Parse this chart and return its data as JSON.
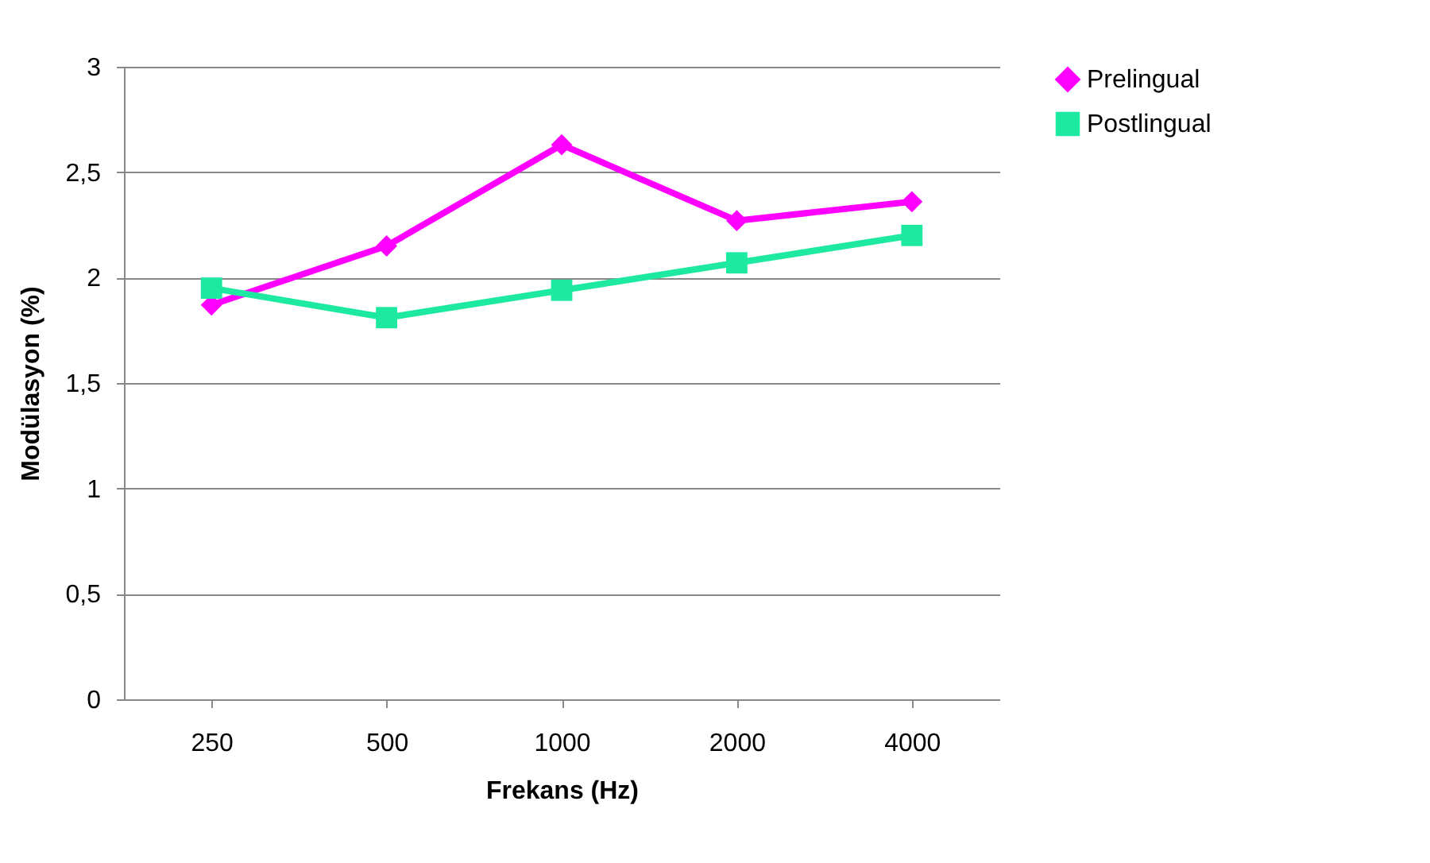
{
  "chart_data": {
    "type": "line",
    "xlabel": "Frekans (Hz)",
    "ylabel": "Modülasyon (%)",
    "categories": [
      "250",
      "500",
      "1000",
      "2000",
      "4000"
    ],
    "series": [
      {
        "name": "Prelingual",
        "color": "#ff00ff",
        "marker": "diamond",
        "values": [
          1.87,
          2.15,
          2.63,
          2.27,
          2.36
        ]
      },
      {
        "name": "Postlingual",
        "color": "#1de9a0",
        "marker": "square",
        "values": [
          1.95,
          1.81,
          1.94,
          2.07,
          2.2
        ]
      }
    ],
    "ylim": [
      0,
      3
    ],
    "yticks": [
      0,
      {
        "value": 0.5,
        "label": "0,5"
      },
      1,
      {
        "value": 1.5,
        "label": "1,5"
      },
      2,
      {
        "value": 2.5,
        "label": "2,5"
      },
      3
    ],
    "grid": "y",
    "legend": "right",
    "line_style": "solid"
  }
}
